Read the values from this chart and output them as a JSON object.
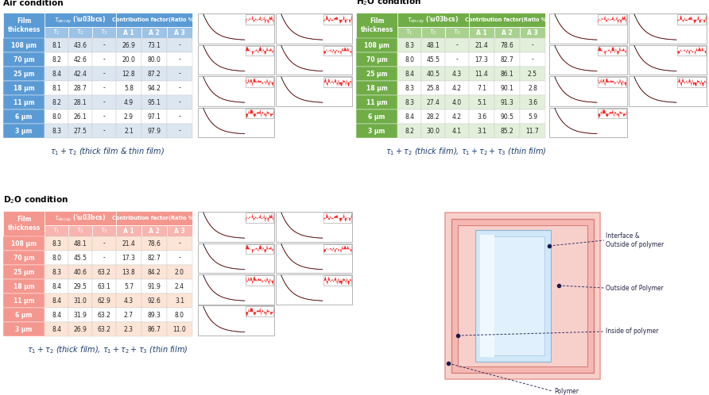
{
  "air": {
    "title": "Air condition",
    "header_color": "#5b9bd5",
    "subheader_color": "#9dc3e6",
    "alt_row_color": "#dce6f1",
    "white_row_color": "#ffffff",
    "rows": [
      [
        "108 μm",
        "8.1",
        "43.6",
        "-",
        "26.9",
        "73.1",
        "-"
      ],
      [
        "70 μm",
        "8.2",
        "42.6",
        "-",
        "20.0",
        "80.0",
        "-"
      ],
      [
        "25 μm",
        "8.4",
        "42.4",
        "-",
        "12.8",
        "87.2",
        "-"
      ],
      [
        "18 μm",
        "8.1",
        "28.7",
        "-",
        "5.8",
        "94.2",
        "-"
      ],
      [
        "11 μm",
        "8.2",
        "28.1",
        "-",
        "4.9",
        "95.1",
        "-"
      ],
      [
        "6 μm",
        "8.0",
        "26.1",
        "-",
        "2.9",
        "97.1",
        "-"
      ],
      [
        "3 μm",
        "8.3",
        "27.5",
        "-",
        "2.1",
        "97.9",
        "-"
      ]
    ],
    "formula": "$\\tau_1 + \\tau_2$ (thick film & thin film)"
  },
  "h2o": {
    "title": "H$_2$O condition",
    "header_color": "#70ad47",
    "subheader_color": "#a9d18e",
    "alt_row_color": "#e2efda",
    "white_row_color": "#ffffff",
    "rows": [
      [
        "108 μm",
        "8.3",
        "48.1",
        "-",
        "21.4",
        "78.6",
        "-"
      ],
      [
        "70 μm",
        "8.0",
        "45.5",
        "-",
        "17.3",
        "82.7",
        "-"
      ],
      [
        "25 μm",
        "8.4",
        "40.5",
        "4.3",
        "11.4",
        "86.1",
        "2.5"
      ],
      [
        "18 μm",
        "8.3",
        "25.8",
        "4.2",
        "7.1",
        "90.1",
        "2.8"
      ],
      [
        "11 μm",
        "8.3",
        "27.4",
        "4.0",
        "5.1",
        "91.3",
        "3.6"
      ],
      [
        "6 μm",
        "8.4",
        "28.2",
        "4.2",
        "3.6",
        "90.5",
        "5.9"
      ],
      [
        "3 μm",
        "8.2",
        "30.0",
        "4.1",
        "3.1",
        "85.2",
        "11.7"
      ]
    ],
    "formula": "$\\tau_1 + \\tau_2$ (thick film), $\\tau_1 + \\tau_2 + \\tau_3$ (thin film)"
  },
  "d2o": {
    "title": "D$_2$O condition",
    "header_color": "#f4978e",
    "subheader_color": "#f8b4ae",
    "alt_row_color": "#fce4d6",
    "white_row_color": "#ffffff",
    "rows": [
      [
        "108 μm",
        "8.3",
        "48.1",
        "-",
        "21.4",
        "78.6",
        "-"
      ],
      [
        "70 μm",
        "8.0",
        "45.5",
        "-",
        "17.3",
        "82.7",
        "-"
      ],
      [
        "25 μm",
        "8.3",
        "40.6",
        "63.2",
        "13.8",
        "84.2",
        "2.0"
      ],
      [
        "18 μm",
        "8.4",
        "29.5",
        "63.1",
        "5.7",
        "91.9",
        "2.4"
      ],
      [
        "11 μm",
        "8.4",
        "31.0",
        "62.9",
        "4.3",
        "92.6",
        "3.1"
      ],
      [
        "6 μm",
        "8.4",
        "31.9",
        "63.2",
        "2.7",
        "89.3",
        "8.0"
      ],
      [
        "3 μm",
        "8.4",
        "26.9",
        "63.2",
        "2.3",
        "86.7",
        "11.0"
      ]
    ],
    "formula": "$\\tau_1 + \\tau_2$ (thick film), $\\tau_1 + \\tau_2 + \\tau_3$ (thin film)"
  },
  "bg_color": "#ffffff"
}
